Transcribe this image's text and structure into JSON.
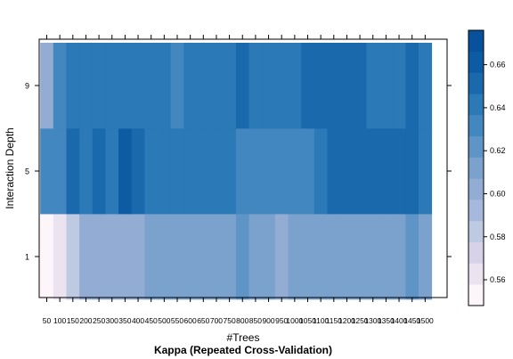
{
  "chart_data": {
    "type": "heatmap",
    "title": "Kappa (Repeated Cross-Validation)",
    "xlabel": "#Trees",
    "ylabel": "Interaction Depth",
    "x": [
      50,
      100,
      150,
      200,
      250,
      300,
      350,
      400,
      450,
      500,
      550,
      600,
      650,
      700,
      750,
      800,
      850,
      900,
      950,
      1000,
      1050,
      1100,
      1150,
      1200,
      1250,
      1300,
      1350,
      1400,
      1450,
      1500
    ],
    "y": [
      1,
      5,
      9
    ],
    "values": [
      [
        0.55,
        0.565,
        0.585,
        0.605,
        0.605,
        0.605,
        0.605,
        0.605,
        0.615,
        0.62,
        0.62,
        0.62,
        0.62,
        0.62,
        0.62,
        0.63,
        0.62,
        0.62,
        0.61,
        0.62,
        0.62,
        0.62,
        0.615,
        0.615,
        0.615,
        0.615,
        0.615,
        0.615,
        0.625,
        0.615
      ],
      [
        0.64,
        0.64,
        0.655,
        0.65,
        0.655,
        0.65,
        0.66,
        0.655,
        0.645,
        0.645,
        0.645,
        0.645,
        0.65,
        0.645,
        0.645,
        0.635,
        0.635,
        0.64,
        0.64,
        0.64,
        0.64,
        0.645,
        0.655,
        0.655,
        0.655,
        0.655,
        0.655,
        0.655,
        0.655,
        0.645
      ],
      [
        0.605,
        0.64,
        0.645,
        0.645,
        0.645,
        0.645,
        0.645,
        0.645,
        0.65,
        0.65,
        0.64,
        0.645,
        0.645,
        0.645,
        0.645,
        0.655,
        0.645,
        0.645,
        0.645,
        0.645,
        0.655,
        0.655,
        0.655,
        0.655,
        0.655,
        0.645,
        0.645,
        0.645,
        0.655,
        0.645
      ]
    ],
    "colorbar": {
      "ticks": [
        0.56,
        0.58,
        0.6,
        0.62,
        0.64,
        0.66
      ],
      "min": 0.55,
      "max": 0.67,
      "levels": 12
    },
    "colors": [
      "#fcf5fa",
      "#ece3f0",
      "#d7d2e8",
      "#bec9e2",
      "#a6b8dc",
      "#92acd4",
      "#7ba2cc",
      "#5f95c6",
      "#4287bf",
      "#2b79b7",
      "#1b69ad",
      "#0d5ca3",
      "#08519c"
    ]
  }
}
